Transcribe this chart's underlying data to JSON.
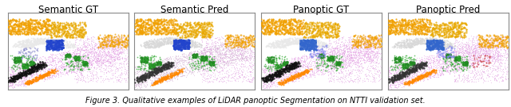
{
  "titles": [
    "Semantic GT",
    "Semantic Pred",
    "Panoptic GT",
    "Panoptic Pred"
  ],
  "caption": "Figure 3. Qualitative examples of LiDAR panoptic Segmentation on NTTI validation set.",
  "bg_color": "#ffffff",
  "border_color": "#888888",
  "title_fontsize": 8.5,
  "caption_fontsize": 7,
  "fig_width": 6.4,
  "fig_height": 1.35,
  "n_cols": 4,
  "panel_bg": "#ffffff"
}
